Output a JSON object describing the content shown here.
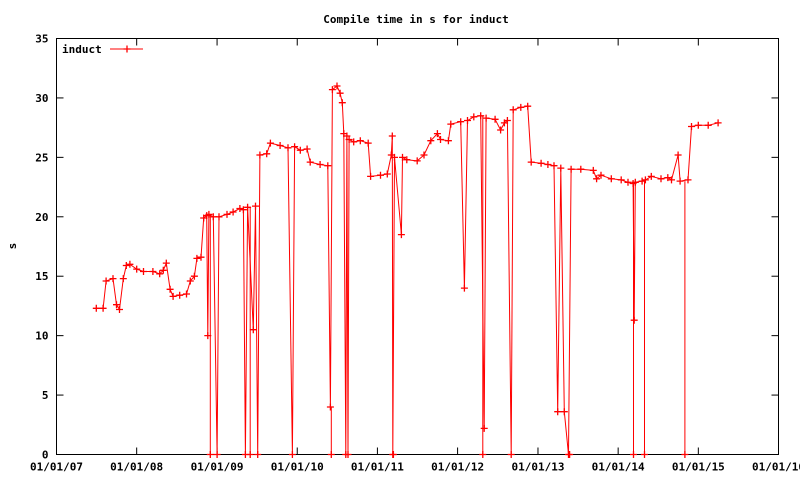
{
  "chart_data": {
    "type": "line",
    "title": "Compile time in s for induct",
    "xlabel": "",
    "ylabel": "s",
    "x_axis": {
      "kind": "date",
      "range": [
        "2007-01-01",
        "2016-01-01"
      ],
      "ticks": [
        {
          "date": "2007-01-01",
          "label": "01/01/07"
        },
        {
          "date": "2008-01-01",
          "label": "01/01/08"
        },
        {
          "date": "2009-01-01",
          "label": "01/01/09"
        },
        {
          "date": "2010-01-01",
          "label": "01/01/10"
        },
        {
          "date": "2011-01-01",
          "label": "01/01/11"
        },
        {
          "date": "2012-01-01",
          "label": "01/01/12"
        },
        {
          "date": "2013-01-01",
          "label": "01/01/13"
        },
        {
          "date": "2014-01-01",
          "label": "01/01/14"
        },
        {
          "date": "2015-01-01",
          "label": "01/01/15"
        },
        {
          "date": "2016-01-01",
          "label": "01/01/16"
        }
      ]
    },
    "y_axis": {
      "range": [
        0,
        35
      ],
      "ticks": [
        {
          "value": 0,
          "label": "0"
        },
        {
          "value": 5,
          "label": "5"
        },
        {
          "value": 10,
          "label": "10"
        },
        {
          "value": 15,
          "label": "15"
        },
        {
          "value": 20,
          "label": "20"
        },
        {
          "value": 25,
          "label": "25"
        },
        {
          "value": 30,
          "label": "30"
        },
        {
          "value": 35,
          "label": "35"
        }
      ]
    },
    "grid": false,
    "legend": {
      "position": "top-left"
    },
    "color": "#ff0000",
    "series": [
      {
        "name": "induct",
        "points": [
          [
            "2007-07-01",
            12.3
          ],
          [
            "2007-08-01",
            12.3
          ],
          [
            "2007-08-15",
            14.6
          ],
          [
            "2007-09-15",
            14.8
          ],
          [
            "2007-10-01",
            12.6
          ],
          [
            "2007-10-15",
            12.2
          ],
          [
            "2007-11-01",
            14.8
          ],
          [
            "2007-11-15",
            15.9
          ],
          [
            "2007-12-01",
            16.0
          ],
          [
            "2008-01-01",
            15.6
          ],
          [
            "2008-02-01",
            15.4
          ],
          [
            "2008-03-15",
            15.4
          ],
          [
            "2008-04-15",
            15.2
          ],
          [
            "2008-05-01",
            15.5
          ],
          [
            "2008-05-15",
            16.1
          ],
          [
            "2008-06-01",
            13.9
          ],
          [
            "2008-06-15",
            13.3
          ],
          [
            "2008-07-15",
            13.4
          ],
          [
            "2008-08-15",
            13.5
          ],
          [
            "2008-09-01",
            14.6
          ],
          [
            "2008-09-20",
            15.0
          ],
          [
            "2008-10-01",
            16.5
          ],
          [
            "2008-10-20",
            16.6
          ],
          [
            "2008-11-01",
            19.9
          ],
          [
            "2008-11-15",
            20.1
          ],
          [
            "2008-11-20",
            10.0
          ],
          [
            "2008-11-25",
            20.2
          ],
          [
            "2008-12-15",
            20.0
          ],
          [
            "2009-01-01",
            0.0
          ],
          [
            "2009-01-10",
            20.0
          ],
          [
            "2009-02-15",
            20.2
          ],
          [
            "2009-03-15",
            20.4
          ],
          [
            "2009-04-15",
            20.7
          ],
          [
            "2009-05-01",
            20.6
          ],
          [
            "2009-05-10",
            0.0
          ],
          [
            "2009-05-20",
            20.8
          ],
          [
            "2009-06-15",
            10.5
          ],
          [
            "2009-06-25",
            20.9
          ],
          [
            "2009-07-05",
            0.0
          ],
          [
            "2009-07-15",
            25.2
          ],
          [
            "2009-08-15",
            25.3
          ],
          [
            "2009-09-01",
            26.2
          ],
          [
            "2009-10-15",
            26.0
          ],
          [
            "2009-11-20",
            25.8
          ],
          [
            "2009-12-10",
            0.0
          ],
          [
            "2009-12-20",
            25.9
          ],
          [
            "2010-01-15",
            25.6
          ],
          [
            "2010-02-15",
            25.7
          ],
          [
            "2010-03-01",
            24.6
          ],
          [
            "2010-04-15",
            24.4
          ],
          [
            "2010-05-20",
            24.3
          ],
          [
            "2010-06-01",
            4.0
          ],
          [
            "2010-06-10",
            30.7
          ],
          [
            "2010-07-01",
            31.0
          ],
          [
            "2010-07-15",
            30.4
          ],
          [
            "2010-07-25",
            29.6
          ],
          [
            "2010-08-01",
            27.0
          ],
          [
            "2010-08-10",
            0.0
          ],
          [
            "2010-08-15",
            26.8
          ],
          [
            "2010-08-20",
            0.0
          ],
          [
            "2010-08-25",
            26.5
          ],
          [
            "2010-09-15",
            26.3
          ],
          [
            "2010-10-15",
            26.4
          ],
          [
            "2010-11-20",
            26.2
          ],
          [
            "2010-12-01",
            23.4
          ],
          [
            "2011-01-15",
            23.5
          ],
          [
            "2011-02-15",
            23.6
          ],
          [
            "2011-03-05",
            25.2
          ],
          [
            "2011-03-10",
            26.8
          ],
          [
            "2011-03-12",
            0.0
          ],
          [
            "2011-03-20",
            25.0
          ],
          [
            "2011-04-20",
            18.5
          ],
          [
            "2011-04-25",
            25.0
          ],
          [
            "2011-05-15",
            24.8
          ],
          [
            "2011-07-01",
            24.7
          ],
          [
            "2011-08-01",
            25.2
          ],
          [
            "2011-09-01",
            26.4
          ],
          [
            "2011-10-01",
            27.0
          ],
          [
            "2011-10-15",
            26.5
          ],
          [
            "2011-11-20",
            26.4
          ],
          [
            "2011-12-01",
            27.8
          ],
          [
            "2012-01-15",
            28.0
          ],
          [
            "2012-02-01",
            14.0
          ],
          [
            "2012-02-15",
            28.1
          ],
          [
            "2012-03-15",
            28.4
          ],
          [
            "2012-04-15",
            28.5
          ],
          [
            "2012-05-01",
            2.2
          ],
          [
            "2012-05-10",
            28.3
          ],
          [
            "2012-06-20",
            28.2
          ],
          [
            "2012-07-15",
            27.3
          ],
          [
            "2012-08-01",
            27.9
          ],
          [
            "2012-08-15",
            28.1
          ],
          [
            "2012-09-01",
            0.0
          ],
          [
            "2012-09-10",
            29.0
          ],
          [
            "2012-10-15",
            29.2
          ],
          [
            "2012-11-15",
            29.3
          ],
          [
            "2012-12-01",
            24.6
          ],
          [
            "2013-01-15",
            24.5
          ],
          [
            "2013-02-15",
            24.4
          ],
          [
            "2013-03-15",
            24.3
          ],
          [
            "2013-04-01",
            3.6
          ],
          [
            "2013-04-15",
            24.1
          ],
          [
            "2013-05-01",
            3.6
          ],
          [
            "2013-05-20",
            0.0
          ],
          [
            "2013-06-01",
            24.0
          ],
          [
            "2013-07-15",
            24.0
          ],
          [
            "2013-09-10",
            23.9
          ],
          [
            "2013-09-25",
            23.2
          ],
          [
            "2013-10-15",
            23.5
          ],
          [
            "2013-12-01",
            23.2
          ],
          [
            "2014-01-15",
            23.1
          ],
          [
            "2014-02-15",
            22.9
          ],
          [
            "2014-03-10",
            22.8
          ],
          [
            "2014-03-15",
            11.3
          ],
          [
            "2014-03-20",
            22.9
          ],
          [
            "2014-04-20",
            23.0
          ],
          [
            "2014-05-05",
            23.1
          ],
          [
            "2014-06-01",
            23.4
          ],
          [
            "2014-07-15",
            23.2
          ],
          [
            "2014-08-15",
            23.3
          ],
          [
            "2014-09-01",
            23.1
          ],
          [
            "2014-10-01",
            25.2
          ],
          [
            "2014-10-10",
            23.0
          ],
          [
            "2014-11-15",
            23.1
          ],
          [
            "2014-12-01",
            27.6
          ],
          [
            "2015-01-01",
            27.7
          ],
          [
            "2015-02-15",
            27.7
          ],
          [
            "2015-04-01",
            27.9
          ]
        ],
        "dropouts": [
          [
            "2008-12-01",
            0.0
          ],
          [
            "2009-06-01",
            0.0
          ],
          [
            "2010-06-05",
            0.0
          ],
          [
            "2011-03-15",
            0.0
          ],
          [
            "2012-04-25",
            0.0
          ],
          [
            "2013-05-25",
            0.0
          ],
          [
            "2014-03-12",
            0.0
          ],
          [
            "2014-05-01",
            0.0
          ],
          [
            "2014-11-01",
            0.0
          ]
        ]
      }
    ]
  }
}
